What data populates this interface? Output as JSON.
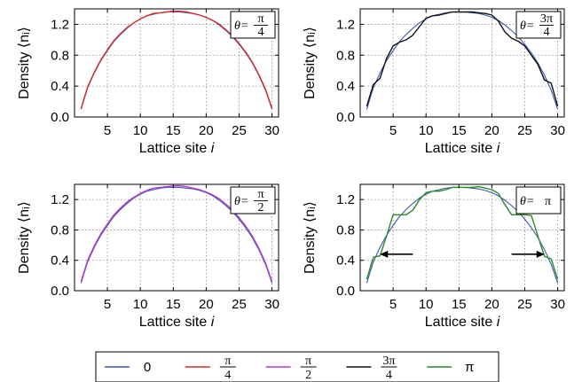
{
  "figure": {
    "x_axis_label": "Lattice site",
    "x_axis_label_var": "i",
    "y_axis_label": "Density",
    "y_axis_label_var": "⟨nᵢ⟩"
  },
  "legend": [
    {
      "label": "0",
      "color": "#3b57b5"
    },
    {
      "label_num": "π",
      "label_den": "4",
      "color": "#d42a2a"
    },
    {
      "label_num": "π",
      "label_den": "2",
      "color": "#b43cc8"
    },
    {
      "label_num": "3π",
      "label_den": "4",
      "color": "#111111"
    },
    {
      "label": "π",
      "color": "#2a8a2a"
    }
  ],
  "chart_data": [
    {
      "type": "line",
      "annotation": {
        "prefix": "θ=",
        "num": "π",
        "den": "4"
      },
      "xticks": [
        5,
        10,
        15,
        20,
        25,
        30
      ],
      "yticks": [
        "0.0",
        "0.4",
        "0.8",
        "1.2"
      ],
      "xlim": [
        0,
        31
      ],
      "ylim": [
        0,
        1.4
      ],
      "grid": true,
      "series": [
        {
          "name": "0",
          "color": "#3b57b5",
          "x": [
            1,
            2,
            3,
            4,
            5,
            6,
            7,
            8,
            9,
            10,
            11,
            12,
            13,
            14,
            15,
            16,
            17,
            18,
            19,
            20,
            21,
            22,
            23,
            24,
            25,
            26,
            27,
            28,
            29,
            30
          ],
          "y": [
            0.1,
            0.38,
            0.57,
            0.73,
            0.86,
            0.98,
            1.07,
            1.15,
            1.22,
            1.27,
            1.31,
            1.33,
            1.35,
            1.36,
            1.36,
            1.36,
            1.35,
            1.34,
            1.32,
            1.29,
            1.25,
            1.19,
            1.12,
            1.04,
            0.94,
            0.83,
            0.7,
            0.54,
            0.35,
            0.1
          ]
        },
        {
          "name": "π/4",
          "color": "#d42a2a",
          "x": [
            1,
            2,
            3,
            4,
            5,
            6,
            7,
            8,
            9,
            10,
            11,
            12,
            13,
            14,
            15,
            16,
            17,
            18,
            19,
            20,
            21,
            22,
            23,
            24,
            25,
            26,
            27,
            28,
            29,
            30
          ],
          "y": [
            0.11,
            0.39,
            0.58,
            0.74,
            0.87,
            0.99,
            1.08,
            1.16,
            1.22,
            1.27,
            1.31,
            1.34,
            1.35,
            1.36,
            1.37,
            1.37,
            1.36,
            1.34,
            1.32,
            1.29,
            1.25,
            1.2,
            1.13,
            1.05,
            0.95,
            0.84,
            0.71,
            0.55,
            0.36,
            0.11
          ]
        }
      ]
    },
    {
      "type": "line",
      "annotation": {
        "prefix": "θ=",
        "num": "3π",
        "den": "4"
      },
      "xticks": [
        5,
        10,
        15,
        20,
        25,
        30
      ],
      "yticks": [
        "0.0",
        "0.4",
        "0.8",
        "1.2"
      ],
      "xlim": [
        0,
        31
      ],
      "ylim": [
        0,
        1.4
      ],
      "grid": true,
      "series": [
        {
          "name": "0",
          "color": "#3b57b5",
          "x": [
            1,
            2,
            3,
            4,
            5,
            6,
            7,
            8,
            9,
            10,
            11,
            12,
            13,
            14,
            15,
            16,
            17,
            18,
            19,
            20,
            21,
            22,
            23,
            24,
            25,
            26,
            27,
            28,
            29,
            30
          ],
          "y": [
            0.1,
            0.38,
            0.57,
            0.73,
            0.86,
            0.98,
            1.07,
            1.15,
            1.22,
            1.27,
            1.31,
            1.33,
            1.35,
            1.36,
            1.36,
            1.36,
            1.35,
            1.34,
            1.32,
            1.29,
            1.25,
            1.19,
            1.12,
            1.04,
            0.94,
            0.83,
            0.7,
            0.54,
            0.35,
            0.1
          ]
        },
        {
          "name": "3π/4",
          "color": "#111111",
          "x": [
            1,
            2,
            3,
            4,
            5,
            6,
            7,
            8,
            9,
            10,
            11,
            12,
            13,
            14,
            15,
            16,
            17,
            18,
            19,
            20,
            21,
            22,
            23,
            24,
            25,
            26,
            27,
            28,
            29,
            30
          ],
          "y": [
            0.14,
            0.42,
            0.5,
            0.76,
            0.92,
            0.97,
            1.0,
            1.06,
            1.17,
            1.28,
            1.31,
            1.32,
            1.34,
            1.36,
            1.36,
            1.36,
            1.36,
            1.35,
            1.34,
            1.32,
            1.24,
            1.1,
            1.02,
            0.98,
            0.92,
            0.8,
            0.68,
            0.48,
            0.44,
            0.14
          ]
        }
      ]
    },
    {
      "type": "line",
      "annotation": {
        "prefix": "θ=",
        "num": "π",
        "den": "2"
      },
      "xticks": [
        5,
        10,
        15,
        20,
        25,
        30
      ],
      "yticks": [
        "0.0",
        "0.4",
        "0.8",
        "1.2"
      ],
      "xlim": [
        0,
        31
      ],
      "ylim": [
        0,
        1.4
      ],
      "grid": true,
      "series": [
        {
          "name": "0",
          "color": "#3b57b5",
          "x": [
            1,
            2,
            3,
            4,
            5,
            6,
            7,
            8,
            9,
            10,
            11,
            12,
            13,
            14,
            15,
            16,
            17,
            18,
            19,
            20,
            21,
            22,
            23,
            24,
            25,
            26,
            27,
            28,
            29,
            30
          ],
          "y": [
            0.1,
            0.38,
            0.57,
            0.73,
            0.86,
            0.98,
            1.07,
            1.15,
            1.22,
            1.27,
            1.31,
            1.33,
            1.35,
            1.36,
            1.36,
            1.36,
            1.35,
            1.34,
            1.32,
            1.29,
            1.25,
            1.19,
            1.12,
            1.04,
            0.94,
            0.83,
            0.7,
            0.54,
            0.35,
            0.1
          ]
        },
        {
          "name": "π/2",
          "color": "#b43cc8",
          "x": [
            1,
            2,
            3,
            4,
            5,
            6,
            7,
            8,
            9,
            10,
            11,
            12,
            13,
            14,
            15,
            16,
            17,
            18,
            19,
            20,
            21,
            22,
            23,
            24,
            25,
            26,
            27,
            28,
            29,
            30
          ],
          "y": [
            0.12,
            0.4,
            0.59,
            0.75,
            0.88,
            1.0,
            1.09,
            1.17,
            1.23,
            1.28,
            1.32,
            1.35,
            1.36,
            1.37,
            1.38,
            1.38,
            1.37,
            1.35,
            1.33,
            1.3,
            1.26,
            1.21,
            1.14,
            1.06,
            0.96,
            0.85,
            0.72,
            0.56,
            0.37,
            0.12
          ]
        }
      ]
    },
    {
      "type": "line",
      "annotation": {
        "prefix": "θ=",
        "text": "π"
      },
      "xticks": [
        5,
        10,
        15,
        20,
        25,
        30
      ],
      "yticks": [
        "0.0",
        "0.4",
        "0.8",
        "1.2"
      ],
      "xlim": [
        0,
        31
      ],
      "ylim": [
        0,
        1.4
      ],
      "grid": true,
      "arrows": [
        {
          "x_from": 8,
          "x_to": 3,
          "y": 0.48
        },
        {
          "x_from": 23,
          "x_to": 28,
          "y": 0.48
        }
      ],
      "series": [
        {
          "name": "0",
          "color": "#3b57b5",
          "x": [
            1,
            2,
            3,
            4,
            5,
            6,
            7,
            8,
            9,
            10,
            11,
            12,
            13,
            14,
            15,
            16,
            17,
            18,
            19,
            20,
            21,
            22,
            23,
            24,
            25,
            26,
            27,
            28,
            29,
            30
          ],
          "y": [
            0.1,
            0.38,
            0.57,
            0.73,
            0.86,
            0.98,
            1.07,
            1.15,
            1.22,
            1.27,
            1.31,
            1.33,
            1.35,
            1.36,
            1.36,
            1.36,
            1.35,
            1.34,
            1.32,
            1.29,
            1.25,
            1.19,
            1.12,
            1.04,
            0.94,
            0.83,
            0.7,
            0.54,
            0.35,
            0.1
          ]
        },
        {
          "name": "π",
          "color": "#2a8a2a",
          "x": [
            1,
            2,
            3,
            4,
            5,
            6,
            7,
            8,
            9,
            10,
            11,
            12,
            13,
            14,
            15,
            16,
            17,
            18,
            19,
            20,
            21,
            22,
            23,
            24,
            25,
            26,
            27,
            28,
            29,
            30
          ],
          "y": [
            0.15,
            0.44,
            0.46,
            0.72,
            1.0,
            1.0,
            1.0,
            1.06,
            1.2,
            1.29,
            1.31,
            1.31,
            1.33,
            1.36,
            1.36,
            1.36,
            1.36,
            1.37,
            1.35,
            1.33,
            1.28,
            1.13,
            1.0,
            1.0,
            1.0,
            0.99,
            0.72,
            0.45,
            0.42,
            0.15
          ]
        }
      ]
    }
  ]
}
